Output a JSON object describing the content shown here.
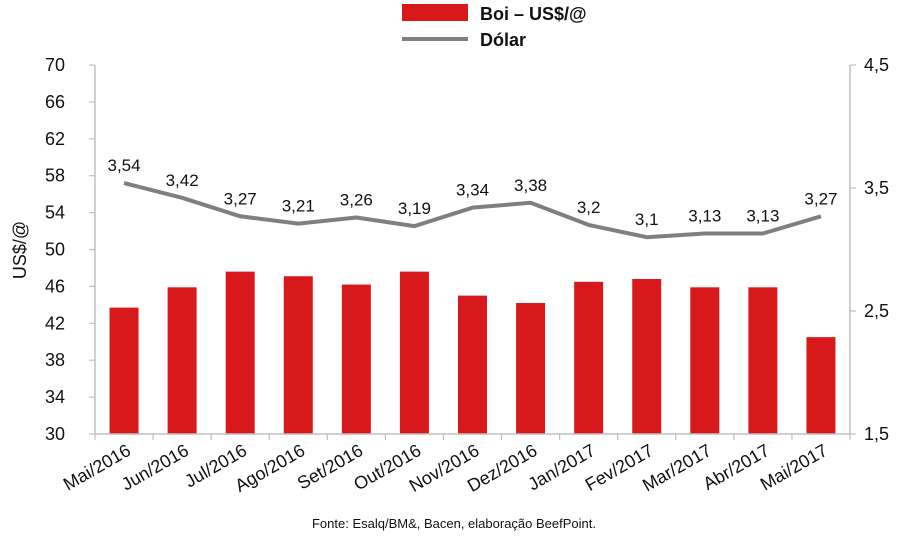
{
  "chart_data": {
    "type": "bar",
    "title": "",
    "categories": [
      "Mai/2016",
      "Jun/2016",
      "Jul/2016",
      "Ago/2016",
      "Set/2016",
      "Out/2016",
      "Nov/2016",
      "Dez/2016",
      "Jan/2017",
      "Fev/2017",
      "Mar/2017",
      "Abr/2017",
      "Mai/2017"
    ],
    "series": [
      {
        "name": "Boi – US$/@",
        "type": "bar",
        "axis": "left",
        "color": "#D7191C",
        "values": [
          43.7,
          45.9,
          47.6,
          47.1,
          46.2,
          47.6,
          45.0,
          44.2,
          46.5,
          46.8,
          45.9,
          45.9,
          40.5
        ]
      },
      {
        "name": "Dólar",
        "type": "line",
        "axis": "right",
        "color": "#7F7F7F",
        "values": [
          3.54,
          3.42,
          3.27,
          3.21,
          3.26,
          3.19,
          3.34,
          3.38,
          3.2,
          3.1,
          3.13,
          3.13,
          3.27
        ],
        "labels": [
          "3,54",
          "3,42",
          "3,27",
          "3,21",
          "3,26",
          "3,19",
          "3,34",
          "3,38",
          "3,2",
          "3,1",
          "3,13",
          "3,13",
          "3,27"
        ]
      }
    ],
    "ylabel": "US$/@",
    "ylim": [
      30,
      70
    ],
    "yticks": [
      "30",
      "34",
      "38",
      "42",
      "46",
      "50",
      "54",
      "58",
      "62",
      "66",
      "70"
    ],
    "y2lim": [
      1.5,
      4.5
    ],
    "y2ticks": [
      "1,5",
      "2,5",
      "3,5",
      "4,5"
    ],
    "legend_position": "top",
    "grid": false,
    "source": "Fonte:  Esalq/BM&,  Bacen,  elaboração  BeefPoint."
  }
}
